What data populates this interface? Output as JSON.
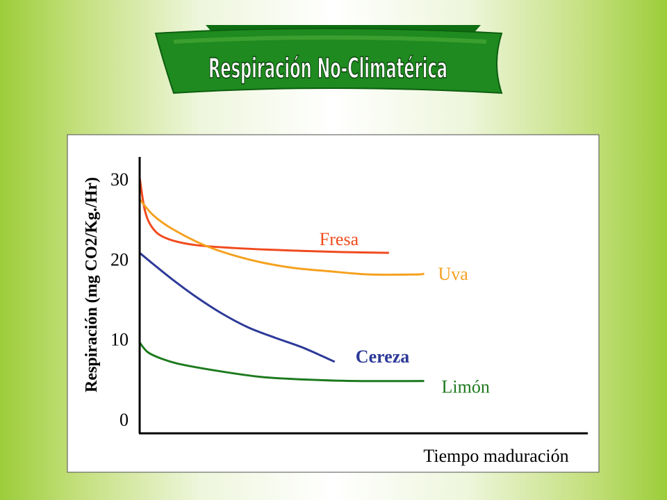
{
  "title": "Respiración No-Climatérica",
  "chart_data": {
    "type": "line",
    "ylabel": "Respiración (mg CO2/Kg./Hr)",
    "xlabel": "Tiempo maduración",
    "ylim": [
      0,
      30
    ],
    "yticks": [
      "0",
      "10",
      "20",
      "30"
    ],
    "series": [
      {
        "name": "Fresa",
        "color": "#f04a1e",
        "bold": false,
        "points": [
          [
            0,
            30.2
          ],
          [
            0.02,
            26
          ],
          [
            0.05,
            23.8
          ],
          [
            0.1,
            22.6
          ],
          [
            0.2,
            21.8
          ],
          [
            0.35,
            21.4
          ],
          [
            0.55,
            21.1
          ],
          [
            0.75,
            20.9
          ],
          [
            0.92,
            20.8
          ]
        ]
      },
      {
        "name": "Uva",
        "color": "#f5a11f",
        "bold": false,
        "points": [
          [
            0,
            27.5
          ],
          [
            0.05,
            25.5
          ],
          [
            0.12,
            23.8
          ],
          [
            0.25,
            21.6
          ],
          [
            0.4,
            20.0
          ],
          [
            0.55,
            19.0
          ],
          [
            0.7,
            18.5
          ],
          [
            0.85,
            18.1
          ],
          [
            1.02,
            18.1
          ],
          [
            1.05,
            18.2
          ]
        ]
      },
      {
        "name": "Cereza",
        "color": "#2d3a99",
        "bold": true,
        "points": [
          [
            0,
            20.8
          ],
          [
            0.05,
            19.4
          ],
          [
            0.12,
            17.5
          ],
          [
            0.2,
            15.5
          ],
          [
            0.3,
            13.3
          ],
          [
            0.4,
            11.5
          ],
          [
            0.5,
            10.2
          ],
          [
            0.6,
            9.0
          ],
          [
            0.7,
            7.5
          ],
          [
            0.72,
            7.2
          ]
        ]
      },
      {
        "name": "Limón",
        "color": "#1d7a1e",
        "bold": false,
        "points": [
          [
            0,
            9.6
          ],
          [
            0.03,
            8.4
          ],
          [
            0.08,
            7.6
          ],
          [
            0.15,
            6.9
          ],
          [
            0.3,
            6.0
          ],
          [
            0.45,
            5.3
          ],
          [
            0.6,
            5.0
          ],
          [
            0.8,
            4.8
          ],
          [
            1.05,
            4.8
          ]
        ]
      }
    ]
  }
}
